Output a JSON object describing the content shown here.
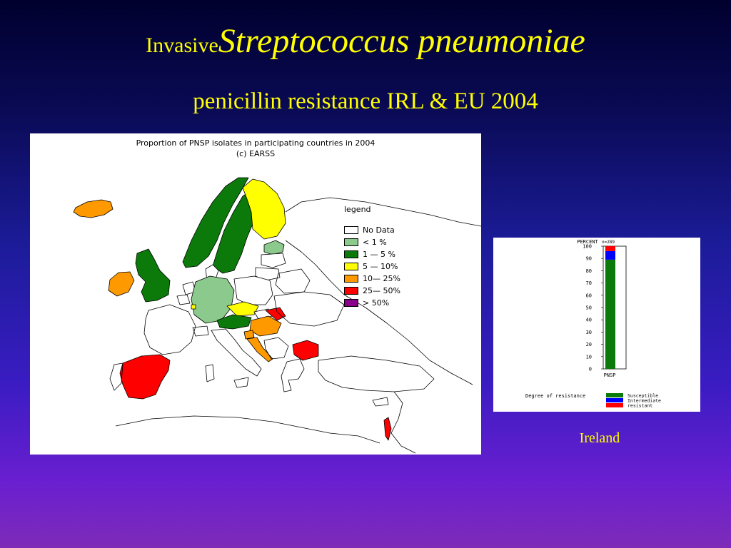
{
  "slide": {
    "title_prefix": "Invasive",
    "title_main": "Streptococcus pneumoniae",
    "subtitle": "penicillin resistance IRL & EU 2004",
    "caption": "Ireland"
  },
  "map": {
    "title_line1": "Proportion of PNSP isolates in participating countries in 2004",
    "title_line2": "(c)  EARSS",
    "legend_title": "legend",
    "legend": [
      {
        "label": "No Data",
        "color": "#ffffff"
      },
      {
        "label": "<  1 %",
        "color": "#8cc98c"
      },
      {
        "label": "1  — 5 %",
        "color": "#0b7a0b"
      },
      {
        "label": "5  — 10%",
        "color": "#ffff00"
      },
      {
        "label": "10— 25%",
        "color": "#ff9900"
      },
      {
        "label": "25— 50%",
        "color": "#ff0000"
      },
      {
        "label": ">  50%",
        "color": "#8b008b"
      }
    ]
  },
  "chart_data": {
    "type": "bar",
    "ylabel": "PERCENT",
    "n_label": "n=289",
    "categories": [
      "PNSP"
    ],
    "yticks": [
      0,
      10,
      20,
      30,
      40,
      50,
      60,
      70,
      80,
      90,
      100
    ],
    "ylim": [
      0,
      100
    ],
    "legend_title": "Degree of resistance",
    "series": [
      {
        "name": "Susceptible",
        "values": [
          89
        ],
        "color": "#0b7a0b"
      },
      {
        "name": "Intermediate",
        "values": [
          7
        ],
        "color": "#0000ff"
      },
      {
        "name": "resistant",
        "values": [
          4
        ],
        "color": "#ff0000"
      }
    ]
  }
}
